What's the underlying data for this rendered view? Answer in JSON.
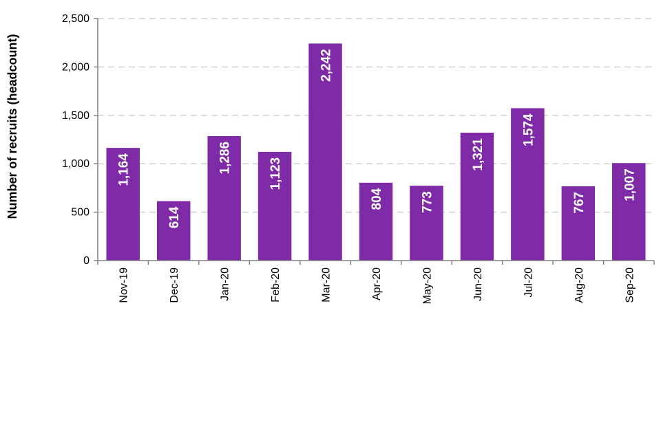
{
  "chart_data": {
    "type": "bar",
    "title": "",
    "xlabel": "",
    "ylabel": "Number of recruits (headcount)",
    "categories": [
      "Nov-19",
      "Dec-19",
      "Jan-20",
      "Feb-20",
      "Mar-20",
      "Apr-20",
      "May-20",
      "Jun-20",
      "Jul-20",
      "Aug-20",
      "Sep-20"
    ],
    "values": [
      1164,
      614,
      1286,
      1123,
      2242,
      804,
      773,
      1321,
      1574,
      767,
      1007
    ],
    "data_labels": [
      "1,164",
      "614",
      "1,286",
      "1,123",
      "2,242",
      "804",
      "773",
      "1,321",
      "1,574",
      "767",
      "1,007"
    ],
    "ylim": [
      0,
      2500
    ],
    "yticks": [
      0,
      500,
      1000,
      1500,
      2000,
      2500
    ],
    "ytick_labels": [
      "0",
      "500",
      "1,000",
      "1,500",
      "2,000",
      "2,500"
    ],
    "grid": "horizontal dashed",
    "legend": "none",
    "colors": {
      "bar": "#7f2ba8",
      "gridline": "#d0d0d0",
      "axis": "#808080",
      "data_label": "#ffffff"
    }
  }
}
